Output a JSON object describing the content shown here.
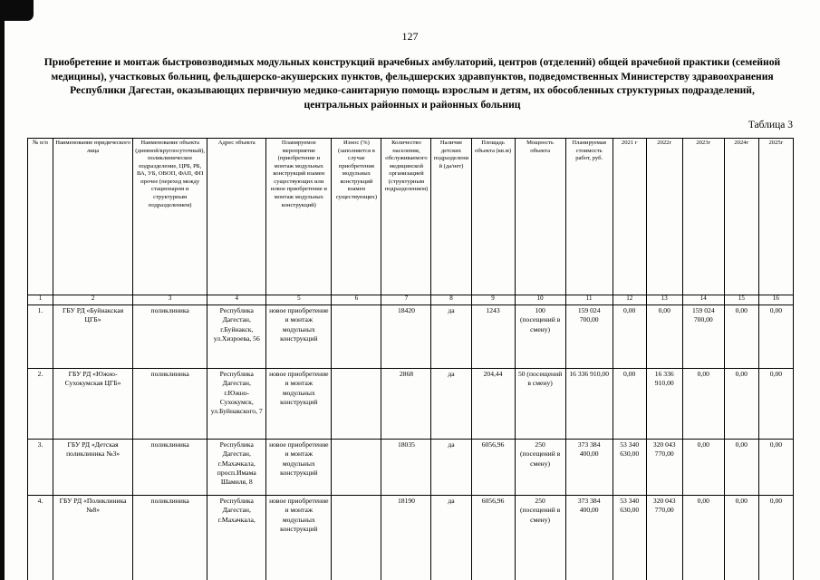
{
  "page": {
    "number": "127",
    "title": "Приобретение и монтаж быстровозводимых модульных конструкций врачебных амбулаторий, центров (отделений) общей врачебной практики (семейной медицины), участковых больниц, фельдшерско-акушерских пунктов, фельдшерских здравпунктов, подведомственных Министерству здравоохранения  Республики Дагестан, оказывающих первичную медико-санитарную помощь взрослым и детям, их обособленных структурных подразделений, центральных районных и районных больниц",
    "table_label": "Таблица 3"
  },
  "table": {
    "headers": [
      "№ п/п",
      "Наименование юридического лица",
      "Наименование объекта (дневной/круглосуточный), поликлиническое подразделение, ЦРБ, РБ, ВА, УБ, ОВОП, ФАП, ФП прочее (переход между стационаром и структурным подразделением)",
      "Адрес объекта",
      "Планируемое мероприятие (приобретение и монтаж модульных конструкций взамен существующих или новое приобретение и монтаж модульных конструкций)",
      "Износ (%) (заполняется в случае приобретения модульных конструкций взамен существующих)",
      "Количество населения, обслуживаемого медицинской организацией (структурным подразделением)",
      "Наличие детских подразделений (да/нет)",
      "Площадь объекта (кв.м)",
      "Мощность объекта",
      "Планируемая стоимость работ, руб.",
      "2021 г",
      "2022г",
      "2023г",
      "2024г",
      "2025г"
    ],
    "column_numbers": [
      "1",
      "2",
      "3",
      "4",
      "5",
      "6",
      "7",
      "8",
      "9",
      "10",
      "11",
      "12",
      "13",
      "14",
      "15",
      "16"
    ],
    "rows": [
      [
        "1.",
        "ГБУ РД «Буйнакская ЦГБ»",
        "поликлиника",
        "Республика Дагестан, г.Буйнакск, ул.Хизроева, 56",
        "новое приобретение и монтаж модульных конструкций",
        "",
        "18420",
        "да",
        "1243",
        "100 (посещений в смену)",
        "159 024 700,00",
        "0,00",
        "0,00",
        "159 024 700,00",
        "0,00",
        "0,00"
      ],
      [
        "2.",
        "ГБУ РД «Южно-Сухокумская ЦГБ»",
        "поликлиника",
        "Республика Дагестан, г.Южно-Сухокумск, ул.Буйнакского, 7",
        "новое приобретение и монтаж модульных конструкций",
        "",
        "2868",
        "да",
        "204,44",
        "50 (посещений в смену)",
        "16 336 910,00",
        "0,00",
        "16 336 910,00",
        "0,00",
        "0,00",
        "0,00"
      ],
      [
        "3.",
        "ГБУ РД «Детская поликлиника №3»",
        "поликлиника",
        "Республика Дагестан, г.Махачкала, просп.Имама Шамиля, 8",
        "новое приобретение и монтаж модульных конструкций",
        "",
        "18035",
        "да",
        "6056,96",
        "250 (посещений в смену)",
        "373 384 400,00",
        "53 340 630,00",
        "320 043 770,00",
        "0,00",
        "0,00",
        "0,00"
      ],
      [
        "4.",
        "ГБУ РД «Поликлиника №8»",
        "поликлиника",
        "Республика Дагестан, г.Махачкала,",
        "новое приобретение и монтаж модульных конструкций",
        "",
        "18190",
        "да",
        "6056,96",
        "250 (посещений в смену)",
        "373 384 400,00",
        "53 340 630,00",
        "320 043 770,00",
        "0,00",
        "0,00",
        "0,00"
      ]
    ]
  }
}
